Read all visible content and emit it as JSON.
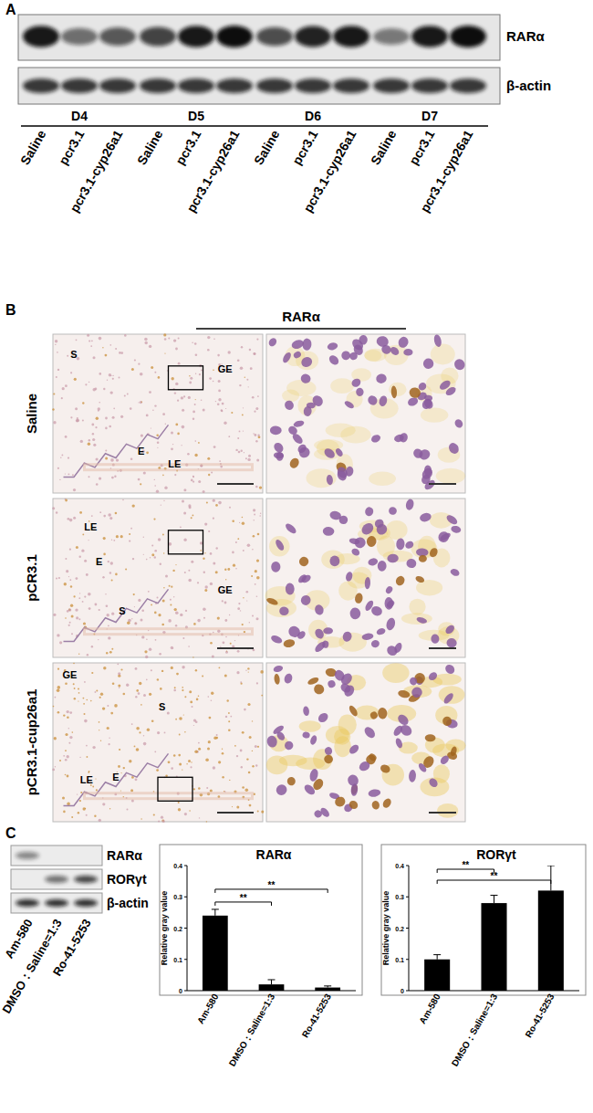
{
  "panels": {
    "A": {
      "label": "A",
      "blots": [
        "RARα",
        "β-actin"
      ],
      "groups": [
        {
          "label": "D4",
          "lanes": [
            "Saline",
            "pcr3.1",
            "pcr3.1-cyp26a1"
          ]
        },
        {
          "label": "D5",
          "lanes": [
            "Saline",
            "pcr3.1",
            "pcr3.1-cyp26a1"
          ]
        },
        {
          "label": "D6",
          "lanes": [
            "Saline",
            "pcr3.1",
            "pcr3.1-cyp26a1"
          ]
        },
        {
          "label": "D7",
          "lanes": [
            "Saline",
            "pcr3.1",
            "pcr3.1-cyp26a1"
          ]
        }
      ]
    },
    "B": {
      "label": "B",
      "title": "RARα",
      "rows": [
        {
          "label": "Saline",
          "regions": [
            "S",
            "GE",
            "E",
            "LE"
          ]
        },
        {
          "label": "pCR3.1",
          "regions": [
            "LE",
            "E",
            "S",
            "GE"
          ]
        },
        {
          "label": "pCR3.1-cup26a1",
          "regions": [
            "GE",
            "S",
            "LE",
            "E"
          ]
        }
      ]
    },
    "C": {
      "label": "C",
      "blots": [
        "RARα",
        "RORγt",
        "β-actin"
      ],
      "lanes": [
        "Am-580",
        "DMSO：Saline=1:3",
        "Ro-41-5253"
      ]
    }
  },
  "chart_data": [
    {
      "type": "bar",
      "title": "RARα",
      "y_label": "Relative gray value",
      "categories": [
        "Am-580",
        "DMSO：Saline=1:3",
        "Ro-41-5253"
      ],
      "values": [
        0.24,
        0.02,
        0.01
      ],
      "errors": [
        0.02,
        0.015,
        0.005
      ],
      "color": "#000000",
      "ylim": [
        0,
        0.4
      ],
      "yticks": [
        0,
        0.1,
        0.2,
        0.3,
        0.4
      ],
      "annotations": [
        "**",
        "**"
      ]
    },
    {
      "type": "bar",
      "title": "RORγt",
      "y_label": "Relative gray value",
      "categories": [
        "Am-580",
        "DMSO：Saline=1:3",
        "Ro-41-5253"
      ],
      "values": [
        0.1,
        0.28,
        0.32
      ],
      "errors": [
        0.015,
        0.025,
        0.08
      ],
      "color": "#000000",
      "ylim": [
        0,
        0.4
      ],
      "yticks": [
        0,
        0.1,
        0.2,
        0.3,
        0.4
      ],
      "annotations": [
        "**",
        "**"
      ]
    }
  ]
}
